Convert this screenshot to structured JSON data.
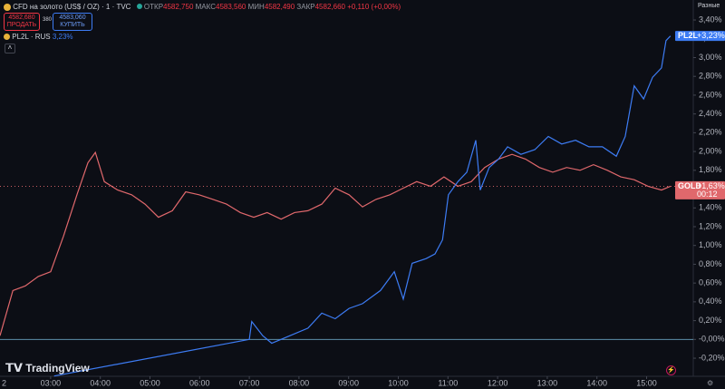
{
  "header": {
    "symbol": "CFD на золото (US$ / OZ) · 1 · TVC",
    "open_label": "ОТКР",
    "open": "4582,750",
    "high_label": "МАКС",
    "high": "4583,560",
    "low_label": "МИН",
    "low": "4582,490",
    "close_label": "ЗАКР",
    "close": "4582,660",
    "change": "+0,110 (+0,00%)",
    "sell_price": "4582,680",
    "sell_label": "ПРОДАТЬ",
    "spread": "380",
    "buy_price": "4583,060",
    "buy_label": "КУПИТЬ",
    "compare_symbol": "PL2L · RUS",
    "compare_change": "3,23%",
    "scale_mode": "Разные",
    "logo": "TradingView"
  },
  "chart_data": {
    "type": "line",
    "x_start_label": "2",
    "xlim": [
      1.98,
      15.94
    ],
    "xticks": [
      {
        "value": 3,
        "label": "03:00"
      },
      {
        "value": 4,
        "label": "04:00"
      },
      {
        "value": 5,
        "label": "05:00"
      },
      {
        "value": 6,
        "label": "06:00"
      },
      {
        "value": 7,
        "label": "07:00"
      },
      {
        "value": 8,
        "label": "08:00"
      },
      {
        "value": 9,
        "label": "09:00"
      },
      {
        "value": 10,
        "label": "10:00"
      },
      {
        "value": 11,
        "label": "11:00"
      },
      {
        "value": 12,
        "label": "12:00"
      },
      {
        "value": 13,
        "label": "13:00"
      },
      {
        "value": 14,
        "label": "14:00"
      },
      {
        "value": 15,
        "label": "15:00"
      }
    ],
    "ylim": [
      -0.3,
      3.55
    ],
    "yticks": [
      {
        "value": -0.2,
        "label": "-0,20%"
      },
      {
        "value": 0,
        "label": "-0,00%"
      },
      {
        "value": 0.2,
        "label": "0,20%"
      },
      {
        "value": 0.4,
        "label": "0,40%"
      },
      {
        "value": 0.6,
        "label": "0,60%"
      },
      {
        "value": 0.8,
        "label": "0,80%"
      },
      {
        "value": 1,
        "label": "1,00%"
      },
      {
        "value": 1.2,
        "label": "1,20%"
      },
      {
        "value": 1.4,
        "label": "1,40%"
      },
      {
        "value": 1.6,
        "label": "1,60%"
      },
      {
        "value": 1.8,
        "label": "1,80%"
      },
      {
        "value": 2,
        "label": "2,00%"
      },
      {
        "value": 2.2,
        "label": "2,20%"
      },
      {
        "value": 2.4,
        "label": "2,40%"
      },
      {
        "value": 2.6,
        "label": "2,60%"
      },
      {
        "value": 2.8,
        "label": "2,80%"
      },
      {
        "value": 3,
        "label": "3,00%"
      },
      {
        "value": 3.2,
        "label": "3,20%"
      },
      {
        "value": 3.4,
        "label": "3,40%"
      }
    ],
    "grid": false,
    "series": [
      {
        "name": "GOLD",
        "color": "#e0686c",
        "last_label": "+1,63%",
        "countdown": "00:12",
        "x": [
          1.98,
          2.24,
          2.49,
          2.75,
          3.0,
          3.26,
          3.53,
          3.75,
          3.9,
          4.08,
          4.35,
          4.63,
          4.9,
          5.17,
          5.45,
          5.72,
          5.99,
          6.27,
          6.54,
          6.82,
          7.09,
          7.36,
          7.64,
          7.91,
          8.18,
          8.46,
          8.73,
          9.01,
          9.28,
          9.55,
          9.83,
          10.1,
          10.37,
          10.65,
          10.92,
          11.2,
          11.47,
          11.74,
          12.02,
          12.29,
          12.56,
          12.84,
          13.11,
          13.39,
          13.66,
          13.93,
          14.21,
          14.48,
          14.75,
          15.03,
          15.3,
          15.48
        ],
        "values": [
          0.04,
          0.52,
          0.57,
          0.67,
          0.72,
          1.1,
          1.54,
          1.88,
          1.99,
          1.68,
          1.59,
          1.54,
          1.44,
          1.3,
          1.37,
          1.57,
          1.54,
          1.49,
          1.44,
          1.35,
          1.3,
          1.35,
          1.28,
          1.35,
          1.37,
          1.44,
          1.61,
          1.54,
          1.41,
          1.49,
          1.54,
          1.61,
          1.68,
          1.63,
          1.73,
          1.63,
          1.68,
          1.83,
          1.92,
          1.97,
          1.92,
          1.83,
          1.78,
          1.83,
          1.8,
          1.86,
          1.8,
          1.73,
          1.7,
          1.63,
          1.59,
          1.63
        ]
      },
      {
        "name": "PL2L",
        "color": "#3d7cf4",
        "last_label": "+3,23%",
        "x": [
          3.07,
          7.0,
          7.05,
          7.27,
          7.45,
          7.82,
          8.18,
          8.46,
          8.73,
          9.01,
          9.28,
          9.64,
          9.92,
          10.1,
          10.28,
          10.56,
          10.74,
          10.89,
          11.01,
          11.2,
          11.38,
          11.56,
          11.65,
          11.83,
          12.02,
          12.2,
          12.47,
          12.75,
          13.02,
          13.29,
          13.57,
          13.84,
          14.11,
          14.39,
          14.57,
          14.75,
          14.94,
          15.12,
          15.3,
          15.39,
          15.48
        ],
        "values": [
          -0.39,
          0.0,
          0.19,
          0.04,
          -0.04,
          0.04,
          0.12,
          0.28,
          0.22,
          0.33,
          0.38,
          0.52,
          0.72,
          0.43,
          0.81,
          0.86,
          0.91,
          1.06,
          1.54,
          1.68,
          1.78,
          2.12,
          1.59,
          1.83,
          1.92,
          2.05,
          1.97,
          2.02,
          2.16,
          2.08,
          2.12,
          2.05,
          2.05,
          1.95,
          2.16,
          2.7,
          2.56,
          2.79,
          2.89,
          3.18,
          3.23
        ]
      }
    ]
  }
}
